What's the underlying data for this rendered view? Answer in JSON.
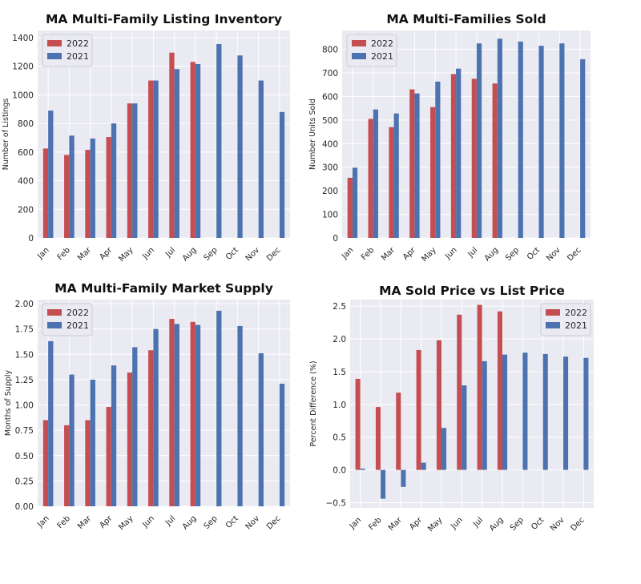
{
  "colors": {
    "series_2022": "#c44e52",
    "series_2021": "#4c72b0",
    "plot_background": "#eaeaf2",
    "grid": "#ffffff",
    "text": "#262626"
  },
  "chart_data": [
    {
      "type": "bar",
      "title": "MA Multi-Family Listing Inventory",
      "xlabel": "",
      "ylabel": "Number of Listings",
      "categories": [
        "Jan",
        "Feb",
        "Mar",
        "Apr",
        "May",
        "Jun",
        "Jul",
        "Aug",
        "Sep",
        "Oct",
        "Nov",
        "Dec"
      ],
      "series": [
        {
          "name": "2022",
          "color": "#c44e52",
          "values": [
            625,
            580,
            615,
            705,
            940,
            1100,
            1295,
            1230,
            null,
            null,
            null,
            null
          ]
        },
        {
          "name": "2021",
          "color": "#4c72b0",
          "values": [
            890,
            715,
            695,
            800,
            940,
            1100,
            1180,
            1215,
            1355,
            1275,
            1100,
            880
          ]
        }
      ],
      "ylim": [
        0,
        1450
      ],
      "yticks": [
        0,
        200,
        400,
        600,
        800,
        1000,
        1200,
        1400
      ],
      "ytick_labels": [
        "0",
        "200",
        "400",
        "600",
        "800",
        "1000",
        "1200",
        "1400"
      ],
      "grid": true,
      "legend": "upper left"
    },
    {
      "type": "bar",
      "title": "MA Multi-Families Sold",
      "xlabel": "",
      "ylabel": "Number Units Sold",
      "categories": [
        "Jan",
        "Feb",
        "Mar",
        "Apr",
        "May",
        "Jun",
        "Jul",
        "Aug",
        "Sep",
        "Oct",
        "Nov",
        "Dec"
      ],
      "series": [
        {
          "name": "2022",
          "color": "#c44e52",
          "values": [
            255,
            505,
            470,
            630,
            555,
            695,
            675,
            655,
            null,
            null,
            null,
            null
          ]
        },
        {
          "name": "2021",
          "color": "#4c72b0",
          "values": [
            298,
            545,
            528,
            613,
            663,
            718,
            825,
            845,
            833,
            815,
            825,
            758
          ]
        }
      ],
      "ylim": [
        0,
        880
      ],
      "yticks": [
        0,
        100,
        200,
        300,
        400,
        500,
        600,
        700,
        800
      ],
      "ytick_labels": [
        "0",
        "100",
        "200",
        "300",
        "400",
        "500",
        "600",
        "700",
        "800"
      ],
      "grid": true,
      "legend": "upper left"
    },
    {
      "type": "bar",
      "title": "MA Multi-Family Market Supply",
      "xlabel": "",
      "ylabel": "Months of Supply",
      "categories": [
        "Jan",
        "Feb",
        "Mar",
        "Apr",
        "May",
        "Jun",
        "Jul",
        "Aug",
        "Sep",
        "Oct",
        "Nov",
        "Dec"
      ],
      "series": [
        {
          "name": "2022",
          "color": "#c44e52",
          "values": [
            0.85,
            0.8,
            0.85,
            0.98,
            1.32,
            1.54,
            1.85,
            1.82,
            null,
            null,
            null,
            null
          ]
        },
        {
          "name": "2021",
          "color": "#4c72b0",
          "values": [
            1.63,
            1.3,
            1.25,
            1.39,
            1.57,
            1.75,
            1.8,
            1.79,
            1.93,
            1.78,
            1.51,
            1.21
          ]
        }
      ],
      "ylim": [
        0,
        2.04
      ],
      "yticks": [
        0,
        0.25,
        0.5,
        0.75,
        1.0,
        1.25,
        1.5,
        1.75,
        2.0
      ],
      "ytick_labels": [
        "0.00",
        "0.25",
        "0.50",
        "0.75",
        "1.00",
        "1.25",
        "1.50",
        "1.75",
        "2.00"
      ],
      "grid": true,
      "legend": "upper left"
    },
    {
      "type": "bar",
      "title": "MA Sold Price vs List Price",
      "xlabel": "",
      "ylabel": "Percent Difference (%)",
      "categories": [
        "Jan",
        "Feb",
        "Mar",
        "Apr",
        "May",
        "Jun",
        "Jul",
        "Aug",
        "Sep",
        "Oct",
        "Nov",
        "Dec"
      ],
      "series": [
        {
          "name": "2022",
          "color": "#c44e52",
          "values": [
            1.39,
            0.96,
            1.18,
            1.83,
            1.98,
            2.37,
            2.52,
            2.42,
            null,
            null,
            null,
            null
          ]
        },
        {
          "name": "2021",
          "color": "#4c72b0",
          "values": [
            0.02,
            -0.44,
            -0.26,
            0.11,
            0.64,
            1.29,
            1.66,
            1.76,
            1.79,
            1.77,
            1.73,
            1.71
          ]
        }
      ],
      "ylim": [
        -0.58,
        2.6
      ],
      "yticks": [
        -0.5,
        0,
        0.5,
        1.0,
        1.5,
        2.0,
        2.5
      ],
      "ytick_labels": [
        "−0.5",
        "0.0",
        "0.5",
        "1.0",
        "1.5",
        "2.0",
        "2.5"
      ],
      "grid": true,
      "legend": "upper right"
    }
  ]
}
